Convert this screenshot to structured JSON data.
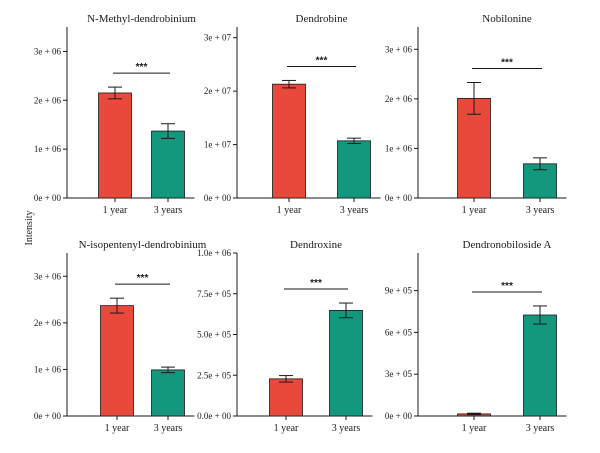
{
  "colors": {
    "one_year": "#E8493A",
    "three_years": "#13977D",
    "ink": "#1a1a1a"
  },
  "y_axis_label": "Intensity",
  "chart_data": [
    {
      "type": "bar",
      "title": "N-Methyl-dendrobinium",
      "categories": [
        "1 year",
        "3 years"
      ],
      "values": [
        2150000,
        1370000
      ],
      "errors": [
        120000,
        150000
      ],
      "ylim": [
        0,
        3500000
      ],
      "yticks": [
        0,
        1000000,
        2000000,
        3000000
      ],
      "ytick_labels": [
        "0e + 00",
        "1e + 06",
        "2e + 06",
        "3e + 06"
      ],
      "annotation": "***"
    },
    {
      "type": "bar",
      "title": "Dendrobine",
      "categories": [
        "1 year",
        "3 years"
      ],
      "values": [
        21300000,
        10700000
      ],
      "errors": [
        700000,
        500000
      ],
      "ylim": [
        0,
        32000000
      ],
      "yticks": [
        0,
        10000000,
        20000000,
        30000000
      ],
      "ytick_labels": [
        "0e + 00",
        "1e + 07",
        "2e + 07",
        "3e + 07"
      ],
      "annotation": "***"
    },
    {
      "type": "bar",
      "title": "Nobilonine",
      "categories": [
        "1 year",
        "3 years"
      ],
      "values": [
        2010000,
        690000
      ],
      "errors": [
        320000,
        120000
      ],
      "ylim": [
        0,
        3450000
      ],
      "yticks": [
        0,
        1000000,
        2000000,
        3000000
      ],
      "ytick_labels": [
        "0e + 00",
        "1e + 06",
        "2e + 06",
        "3e + 06"
      ],
      "annotation": "***"
    },
    {
      "type": "bar",
      "title": "N-isopentenyl-dendrobinium",
      "categories": [
        "1 year",
        "3 years"
      ],
      "values": [
        2370000,
        990000
      ],
      "errors": [
        160000,
        60000
      ],
      "ylim": [
        0,
        3500000
      ],
      "yticks": [
        0,
        1000000,
        2000000,
        3000000
      ],
      "ytick_labels": [
        "0e + 00",
        "1e + 06",
        "2e + 06",
        "3e + 06"
      ],
      "annotation": "***"
    },
    {
      "type": "bar",
      "title": "Dendroxine",
      "categories": [
        "1 year",
        "3 years"
      ],
      "values": [
        228000,
        648000
      ],
      "errors": [
        20000,
        45000
      ],
      "ylim": [
        0,
        1000000
      ],
      "yticks": [
        0,
        250000,
        500000,
        750000,
        1000000
      ],
      "ytick_labels": [
        "0.0e + 00",
        "2.5e + 05",
        "5.0e + 05",
        "7.5e + 05",
        "1.0e + 06"
      ],
      "annotation": "***"
    },
    {
      "type": "bar",
      "title": "Dendronobiloside A",
      "categories": [
        "1 year",
        "3 years"
      ],
      "values": [
        15000,
        725000
      ],
      "errors": [
        5000,
        65000
      ],
      "ylim": [
        0,
        1170000
      ],
      "yticks": [
        0,
        300000,
        600000,
        900000
      ],
      "ytick_labels": [
        "0e + 00",
        "3e + 05",
        "6e + 05",
        "9e + 05"
      ],
      "annotation": "***"
    }
  ]
}
